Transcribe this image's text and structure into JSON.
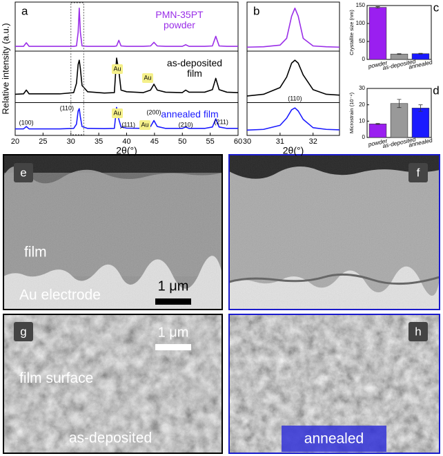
{
  "chart_data": [
    {
      "type": "line",
      "panel_label": "a",
      "xlabel": "2θ(°)",
      "ylabel": "Relative intensity (a.u.)",
      "x": [
        20,
        21.5,
        22,
        22.5,
        25,
        28,
        30.5,
        31,
        31.3,
        31.5,
        31.7,
        32,
        33,
        36,
        37.8,
        38.2,
        38.6,
        39,
        40,
        43,
        44.3,
        44.9,
        45.5,
        47,
        50,
        50.6,
        51.2,
        54,
        55.4,
        56,
        56.6,
        58,
        60
      ],
      "series": [
        {
          "name": "PMN-35PT powder",
          "color": "#9a2ee8",
          "values": [
            5,
            5,
            14,
            5,
            5,
            5,
            5,
            6,
            40,
            100,
            40,
            6,
            5,
            5,
            5,
            6,
            20,
            6,
            5,
            5,
            6,
            15,
            6,
            5,
            5,
            9,
            5,
            5,
            6,
            30,
            6,
            5,
            5
          ]
        },
        {
          "name": "as-deposited film",
          "color": "#000000",
          "values": [
            14,
            15,
            24,
            15,
            15,
            15,
            18,
            40,
            85,
            95,
            75,
            35,
            20,
            17,
            18,
            100,
            70,
            24,
            20,
            18,
            24,
            38,
            24,
            19,
            18,
            24,
            19,
            19,
            25,
            52,
            25,
            19,
            18
          ]
        },
        {
          "name": "annealed film",
          "color": "#1a1aff",
          "values": [
            10,
            10,
            20,
            10,
            10,
            10,
            12,
            30,
            85,
            95,
            60,
            20,
            12,
            11,
            12,
            100,
            50,
            18,
            13,
            12,
            20,
            45,
            20,
            12,
            12,
            18,
            12,
            12,
            18,
            52,
            18,
            12,
            12
          ]
        }
      ],
      "xlim": [
        20,
        60
      ],
      "xticks": [
        20,
        25,
        30,
        35,
        40,
        45,
        50,
        55,
        60
      ],
      "ylim": [
        0,
        110
      ],
      "annotations": [
        {
          "text": "(100)",
          "x": 22
        },
        {
          "text": "(110)",
          "x": 31.5
        },
        {
          "text": "(111)",
          "x": 38.6
        },
        {
          "text": "(200)",
          "x": 44.9
        },
        {
          "text": "(210)",
          "x": 50.6
        },
        {
          "text": "(211)",
          "x": 56
        }
      ],
      "au_labels": [
        "Au",
        "Au",
        "Au",
        "Au"
      ]
    },
    {
      "type": "line",
      "panel_label": "b",
      "xlabel": "2θ(°)",
      "x": [
        30,
        30.5,
        31,
        31.2,
        31.35,
        31.45,
        31.55,
        31.7,
        32,
        32.4,
        32.8
      ],
      "series": [
        {
          "color": "#9a2ee8",
          "values": [
            3,
            4,
            8,
            25,
            80,
            100,
            80,
            25,
            6,
            4,
            3
          ]
        },
        {
          "color": "#000000",
          "values": [
            10,
            14,
            30,
            55,
            88,
            95,
            88,
            60,
            25,
            14,
            12
          ]
        },
        {
          "color": "#1a1aff",
          "values": [
            5,
            8,
            25,
            55,
            90,
            98,
            85,
            50,
            15,
            8,
            6
          ]
        }
      ],
      "xlim": [
        30,
        32.8
      ],
      "xticks": [
        30,
        31,
        32
      ],
      "ylim": [
        0,
        110
      ],
      "annotations": [
        {
          "text": "(110)",
          "x": 31.45
        }
      ]
    },
    {
      "type": "bar",
      "panel_label": "c",
      "ylabel": "Crystallite size (nm)",
      "categories": [
        "powder",
        "as-deposited",
        "annealed"
      ],
      "values": [
        145,
        15,
        16
      ],
      "errors": [
        2,
        1,
        1
      ],
      "colors": [
        "#9a1ff0",
        "#999999",
        "#1a1aff"
      ],
      "ylim": [
        0,
        150
      ],
      "yticks": [
        0,
        50,
        100,
        150
      ]
    },
    {
      "type": "bar",
      "panel_label": "d",
      "ylabel": "Microstrain (10⁻⁴)",
      "categories": [
        "powder",
        "as-deposited",
        "annealed"
      ],
      "values": [
        8.3,
        20.8,
        18
      ],
      "errors": [
        0.3,
        2.5,
        2
      ],
      "colors": [
        "#9a1ff0",
        "#999999",
        "#1a1aff"
      ],
      "ylim": [
        0,
        30
      ],
      "yticks": [
        0,
        10,
        20,
        30
      ]
    }
  ],
  "micrographs": [
    {
      "label": "e",
      "film": "film",
      "electrode": "Au electrode",
      "scale_bar": "1 μm"
    },
    {
      "label": "f"
    },
    {
      "label": "g",
      "scale_bar": "1 μm",
      "surface": "film surface",
      "sample": "as-deposited"
    },
    {
      "label": "h",
      "sample": "annealed"
    }
  ]
}
